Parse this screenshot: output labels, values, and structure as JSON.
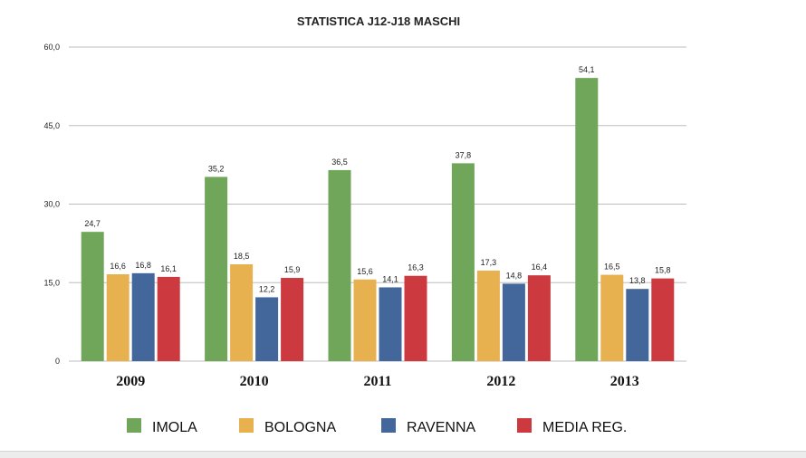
{
  "chart_data": {
    "type": "bar",
    "title": "STATISTICA J12-J18 MASCHI",
    "categories": [
      "2009",
      "2010",
      "2011",
      "2012",
      "2013"
    ],
    "series": [
      {
        "name": "IMOLA",
        "color": "#70a65a",
        "values": [
          24.7,
          35.2,
          36.5,
          37.8,
          54.1
        ],
        "labels": [
          "24,7",
          "35,2",
          "36,5",
          "37,8",
          "54,1"
        ]
      },
      {
        "name": "BOLOGNA",
        "color": "#e8b14f",
        "values": [
          16.6,
          18.5,
          15.6,
          17.3,
          16.5
        ],
        "labels": [
          "16,6",
          "18,5",
          "15,6",
          "17,3",
          "16,5"
        ]
      },
      {
        "name": "RAVENNA",
        "color": "#44679b",
        "values": [
          16.8,
          12.2,
          14.1,
          14.8,
          13.8
        ],
        "labels": [
          "16,8",
          "12,2",
          "14,1",
          "14,8",
          "13,8"
        ]
      },
      {
        "name": "MEDIA REG.",
        "color": "#cc3a40",
        "values": [
          16.1,
          15.9,
          16.3,
          16.4,
          15.8
        ],
        "labels": [
          "16,1",
          "15,9",
          "16,3",
          "16,4",
          "15,8"
        ]
      }
    ],
    "ylim": [
      0,
      60
    ],
    "yticks": [
      0,
      15,
      30,
      45,
      60
    ],
    "ytick_labels": [
      "0",
      "15,0",
      "30,0",
      "45,0",
      "60,0"
    ],
    "grid": true,
    "legend_position": "bottom"
  }
}
